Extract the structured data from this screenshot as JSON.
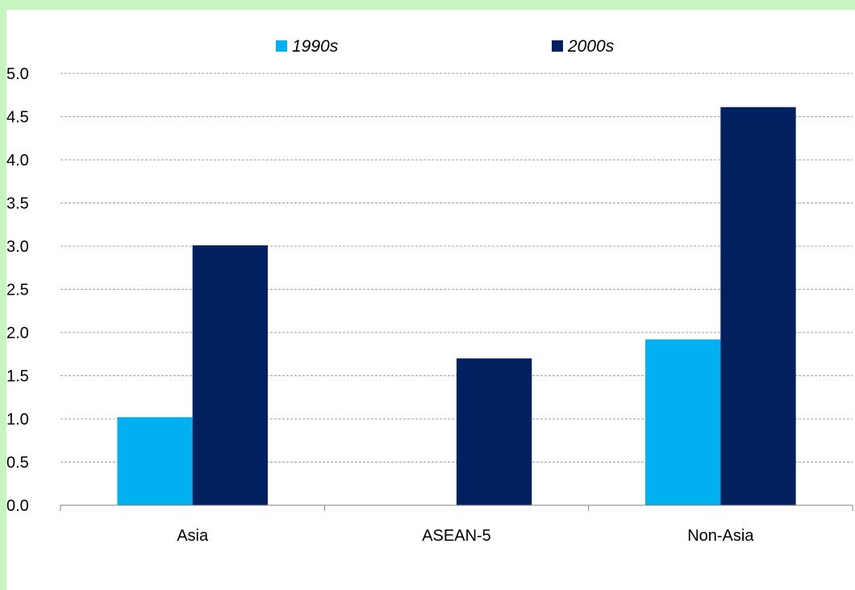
{
  "colors": {
    "background": "#c6f5c0",
    "series_1990s": "#00b0f0",
    "series_2000s": "#002060",
    "grid": "#808080"
  },
  "chart_data": {
    "type": "bar",
    "title": "",
    "xlabel": "",
    "ylabel": "",
    "categories": [
      "Asia",
      "ASEAN-5",
      "Non-Asia"
    ],
    "series": [
      {
        "name": "1990s",
        "values": [
          1.02,
          null,
          1.92
        ]
      },
      {
        "name": "2000s",
        "values": [
          3.01,
          1.7,
          4.61
        ]
      }
    ],
    "ylim": [
      0,
      5.0
    ],
    "yticks": [
      "0.0",
      "0.5",
      "1.0",
      "1.5",
      "2.0",
      "2.5",
      "3.0",
      "3.5",
      "4.0",
      "4.5",
      "5.0"
    ],
    "grid": true,
    "legend_position": "top"
  }
}
